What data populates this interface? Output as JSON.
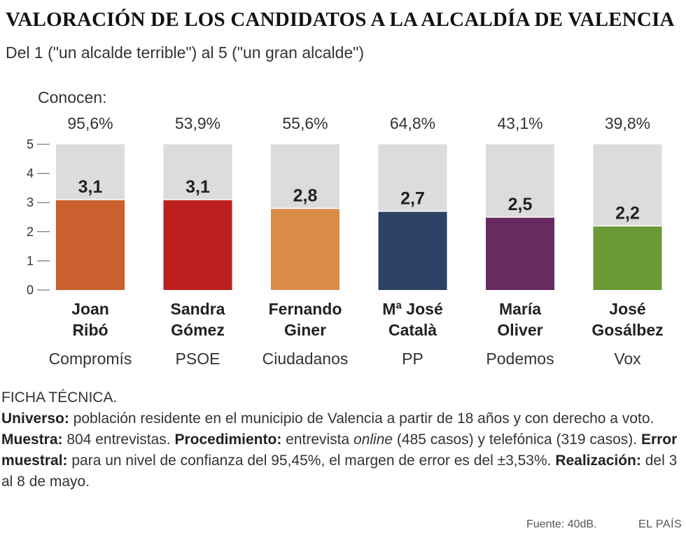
{
  "chart_data": {
    "type": "bar",
    "title": "VALORACIÓN DE LOS CANDIDATOS A LA ALCALDÍA DE VALENCIA",
    "subtitle": "Del 1 (\"un alcalde terrible\") al 5 (\"un gran alcalde\")",
    "known_label": "Conocen:",
    "ylim": [
      0,
      5
    ],
    "yticks": [
      "0",
      "1",
      "2",
      "3",
      "4",
      "5"
    ],
    "candidates": [
      {
        "first": "Joan",
        "last": "Ribó",
        "party": "Compromís",
        "value": 3.1,
        "value_label": "3,1",
        "known": "95,6%",
        "color": "#c9602d"
      },
      {
        "first": "Sandra",
        "last": "Gómez",
        "party": "PSOE",
        "value": 3.1,
        "value_label": "3,1",
        "known": "53,9%",
        "color": "#bd1f1f"
      },
      {
        "first": "Fernando",
        "last": "Giner",
        "party": "Ciudadanos",
        "value": 2.8,
        "value_label": "2,8",
        "known": "55,6%",
        "color": "#d98c48"
      },
      {
        "first": "Mª José",
        "last": "Català",
        "party": "PP",
        "value": 2.7,
        "value_label": "2,7",
        "known": "64,8%",
        "color": "#2c4266"
      },
      {
        "first": "María",
        "last": "Oliver",
        "party": "Podemos",
        "value": 2.5,
        "value_label": "2,5",
        "known": "43,1%",
        "color": "#672b62"
      },
      {
        "first": "José",
        "last": "Gosálbez",
        "party": "Vox",
        "value": 2.2,
        "value_label": "2,2",
        "known": "39,8%",
        "color": "#6b9a35"
      }
    ],
    "background_color": "#dcdcdc"
  },
  "ficha": {
    "heading": "FICHA TÉCNICA.",
    "universo_label": "Universo:",
    "universo_text": " población residente en el municipio de Valencia a partir de 18 años y con derecho a voto. ",
    "muestra_label": "Muestra:",
    "muestra_text": " 804 entrevistas. ",
    "procedimiento_label": "Procedimiento:",
    "procedimiento_text1": " entrevista ",
    "procedimiento_italic": "online",
    "procedimiento_text2": " (485 casos) y telefónica (319 casos). ",
    "error_label": "Error muestral:",
    "error_text": " para un nivel de confianza del 95,45%, el margen de error es del ±3,53%. ",
    "realizacion_label": "Realización:",
    "realizacion_text": " del 3 al 8 de mayo."
  },
  "footer": {
    "source": "Fuente: 40dB.",
    "brand": "EL PAÍS"
  }
}
